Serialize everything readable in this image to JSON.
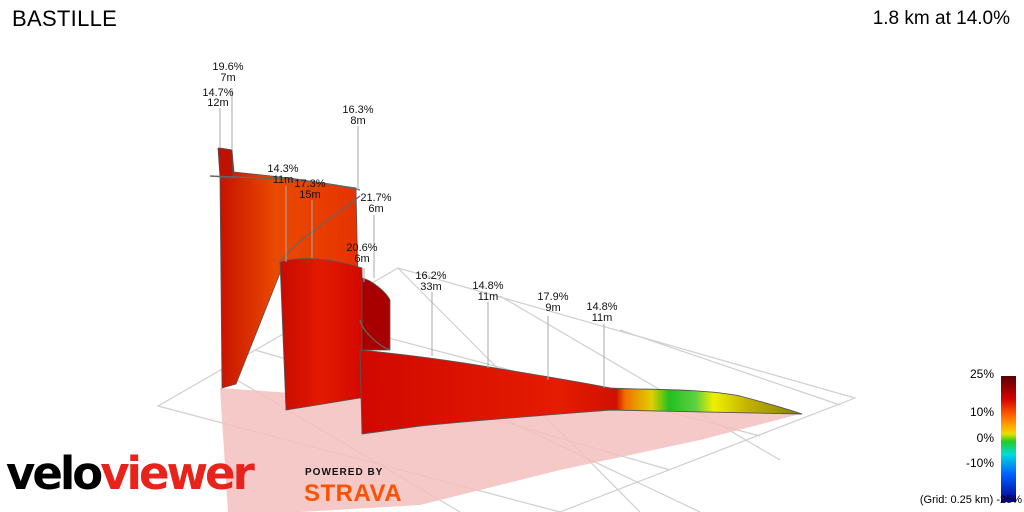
{
  "header": {
    "segment_name": "BASTILLE",
    "summary": "1.8 km at 14.0%"
  },
  "annotations": [
    {
      "grade": "19.6%",
      "length": "7m"
    },
    {
      "grade": "14.7%",
      "length": "12m"
    },
    {
      "grade": "16.3%",
      "length": "8m"
    },
    {
      "grade": "14.3%",
      "length": "11m"
    },
    {
      "grade": "17.3%",
      "length": "15m"
    },
    {
      "grade": "21.7%",
      "length": "6m"
    },
    {
      "grade": "20.6%",
      "length": "6m"
    },
    {
      "grade": "16.2%",
      "length": "33m"
    },
    {
      "grade": "14.8%",
      "length": "11m"
    },
    {
      "grade": "17.9%",
      "length": "9m"
    },
    {
      "grade": "14.8%",
      "length": "11m"
    }
  ],
  "legend": {
    "labels": [
      "25%",
      "10%",
      "0%",
      "-10%",
      "-25%"
    ],
    "grid_note": "(Grid: 0.25 km)",
    "colors": [
      "#5a0000",
      "#e60000",
      "#ff8800",
      "#ffe000",
      "#22cc22",
      "#00e0e0",
      "#0050ff",
      "#00008a"
    ]
  },
  "branding": {
    "logo_part1": "velo",
    "logo_part2": "viewer",
    "powered_by": "POWERED BY",
    "strava": "STRAVA"
  }
}
